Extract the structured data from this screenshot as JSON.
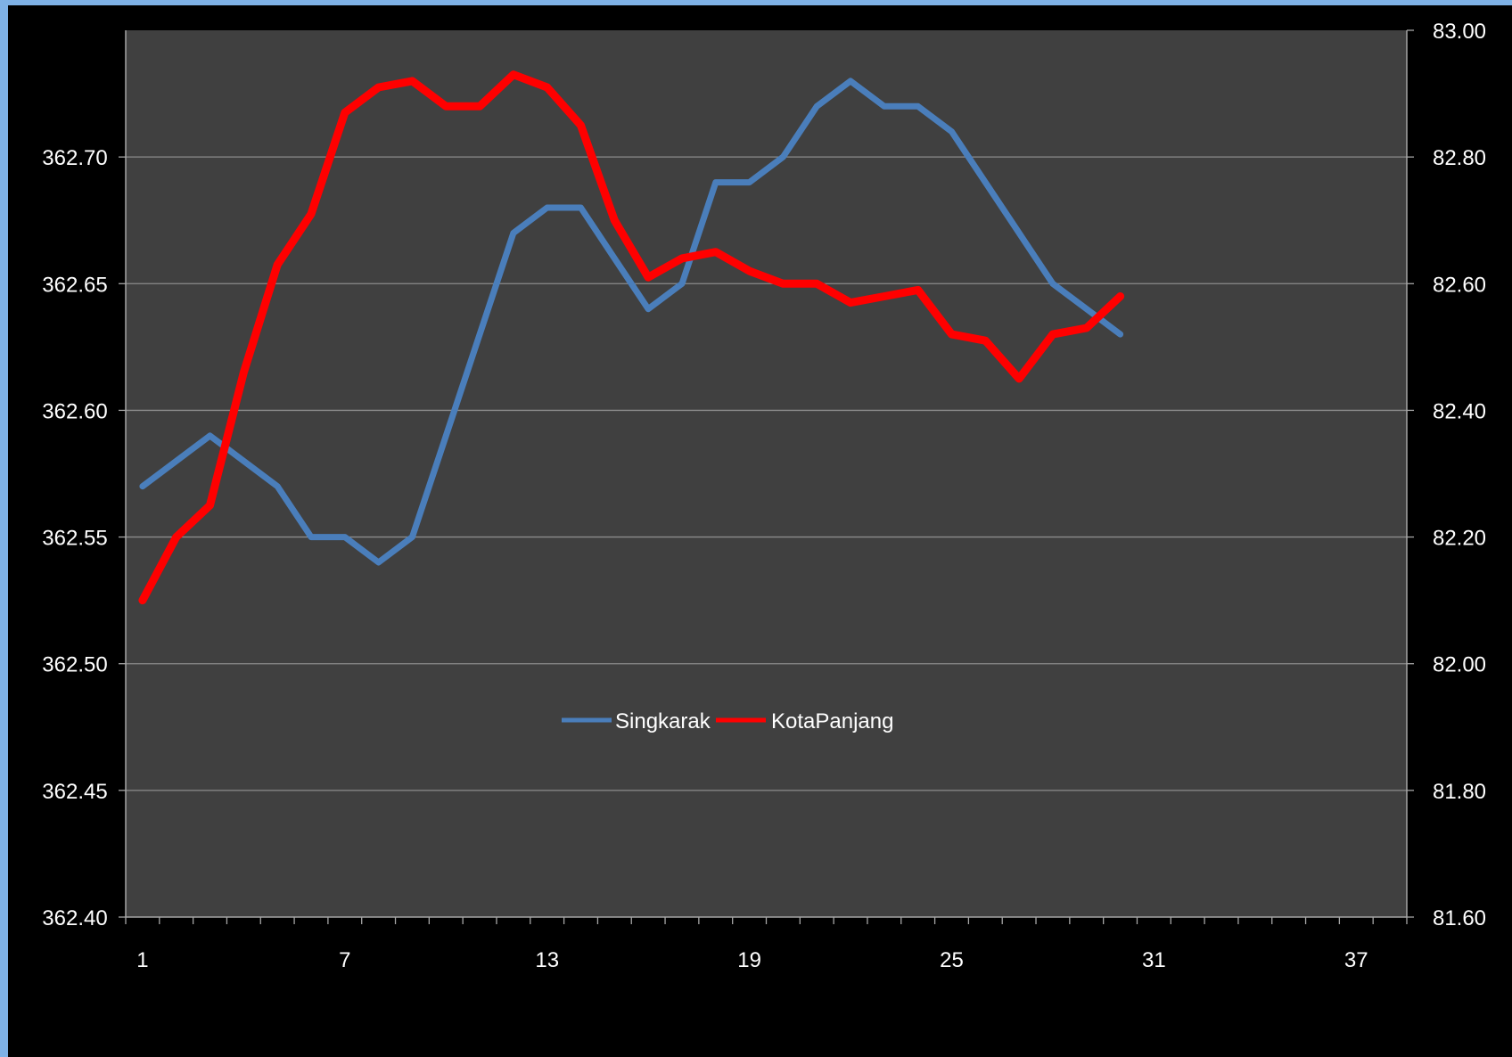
{
  "colors": {
    "page_background": "#7fb2e6",
    "outer_background": "#000000",
    "plot_background": "#404040",
    "gridline": "#8c8c8c",
    "axis": "#a6a6a6",
    "text": "#ffffff",
    "singkarak": "#4a7ebb",
    "kotapanjang": "#ff0000"
  },
  "chart_data": {
    "type": "line",
    "title": "",
    "xlabel": "",
    "ylabel": "",
    "x": [
      1,
      2,
      3,
      4,
      5,
      6,
      7,
      8,
      9,
      10,
      11,
      12,
      13,
      14,
      15,
      16,
      17,
      18,
      19,
      20,
      21,
      22,
      23,
      24,
      25,
      26,
      27,
      28,
      29,
      30
    ],
    "xlim": [
      0.5,
      38.5
    ],
    "x_tick_labels": [
      "1",
      "7",
      "13",
      "19",
      "25",
      "31",
      "37"
    ],
    "y_left": {
      "lim": [
        362.4,
        362.75
      ],
      "tick_labels": [
        "362.40",
        "362.45",
        "362.50",
        "362.55",
        "362.60",
        "362.65",
        "362.70"
      ]
    },
    "y_right": {
      "lim": [
        81.6,
        83.0
      ],
      "tick_labels": [
        "81.60",
        "81.80",
        "82.00",
        "82.20",
        "82.40",
        "82.60",
        "82.80",
        "83.00"
      ]
    },
    "grid": true,
    "legend_position": "center",
    "series": [
      {
        "name": "Singkarak",
        "axis": "left",
        "color": "#4a7ebb",
        "values": [
          362.57,
          362.58,
          362.59,
          362.58,
          362.57,
          362.55,
          362.55,
          362.54,
          362.55,
          362.59,
          362.63,
          362.67,
          362.68,
          362.68,
          362.66,
          362.64,
          362.65,
          362.69,
          362.69,
          362.7,
          362.72,
          362.73,
          362.72,
          362.72,
          362.71,
          362.69,
          362.67,
          362.65,
          362.64,
          362.63
        ]
      },
      {
        "name": "KotaPanjang",
        "axis": "right",
        "color": "#ff0000",
        "values": [
          82.1,
          82.2,
          82.25,
          82.46,
          82.63,
          82.71,
          82.87,
          82.91,
          82.92,
          82.88,
          82.88,
          82.93,
          82.91,
          82.85,
          82.7,
          82.61,
          82.64,
          82.65,
          82.62,
          82.6,
          82.6,
          82.57,
          82.58,
          82.59,
          82.52,
          82.51,
          82.45,
          82.52,
          82.53,
          82.58
        ]
      }
    ]
  }
}
